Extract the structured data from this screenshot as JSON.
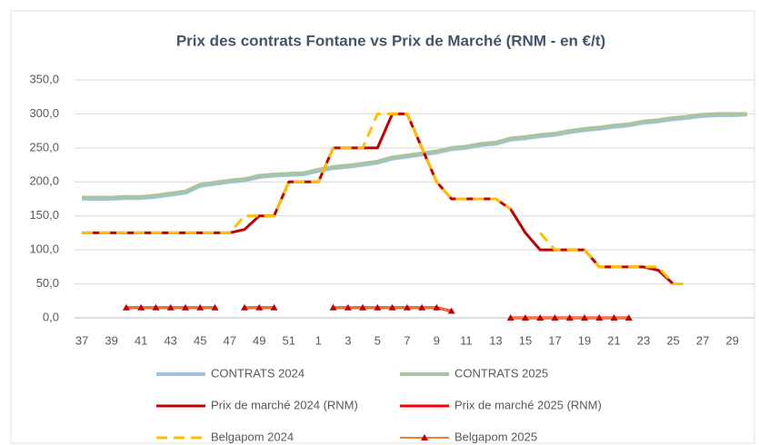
{
  "chart_data": {
    "type": "line",
    "title": "Prix des contrats Fontane vs Prix de Marché (RNM - en €/t)",
    "categories": [
      37,
      null,
      39,
      null,
      41,
      null,
      43,
      null,
      45,
      null,
      47,
      null,
      49,
      null,
      51,
      null,
      1,
      null,
      3,
      null,
      5,
      null,
      7,
      null,
      9,
      null,
      11,
      null,
      13,
      null,
      15,
      null,
      17,
      null,
      19,
      null,
      21,
      null,
      23,
      null,
      25,
      null,
      27,
      null,
      29,
      null
    ],
    "ylim": [
      0,
      350
    ],
    "yticks": [
      {
        "value": 0,
        "label": "0,0"
      },
      {
        "value": 50,
        "label": "50,0"
      },
      {
        "value": 100,
        "label": "100,0"
      },
      {
        "value": 150,
        "label": "150,0"
      },
      {
        "value": 200,
        "label": "200,0"
      },
      {
        "value": 250,
        "label": "250,0"
      },
      {
        "value": 300,
        "label": "300,0"
      },
      {
        "value": 350,
        "label": "350,0"
      }
    ],
    "grid": true,
    "legend": "bottom",
    "series": [
      {
        "name": "CONTRATS 2024",
        "color": "#9dc3e6",
        "width": 4,
        "dash": false,
        "values": [
          175,
          175,
          175,
          176,
          176,
          178,
          181,
          184,
          194,
          197,
          200,
          202,
          207,
          209,
          210,
          211,
          216,
          220,
          222,
          225,
          228,
          234,
          237,
          240,
          243,
          248,
          250,
          254,
          256,
          262,
          264,
          267,
          269,
          273,
          276,
          278,
          281,
          283,
          287,
          289,
          292,
          294,
          297,
          298,
          298,
          299
        ]
      },
      {
        "name": "CONTRATS 2025",
        "color": "#a9c4a0",
        "width": 4,
        "dash": false,
        "values": [
          177,
          177,
          177,
          178,
          178,
          180,
          183,
          186,
          196,
          199,
          202,
          204,
          209,
          211,
          212,
          213,
          218,
          222,
          224,
          227,
          230,
          236,
          239,
          242,
          245,
          250,
          252,
          256,
          258,
          264,
          266,
          269,
          271,
          275,
          278,
          280,
          283,
          285,
          289,
          291,
          294,
          296,
          299,
          300,
          300,
          300
        ]
      },
      {
        "name": "Prix de marché 2024 (RNM)",
        "color": "#c00000",
        "width": 3,
        "dash": false,
        "values": [
          125,
          125,
          125,
          125,
          125,
          125,
          125,
          125,
          125,
          125,
          125,
          130,
          150,
          150,
          200,
          200,
          200,
          250,
          250,
          250,
          250,
          300,
          300,
          250,
          200,
          175,
          175,
          175,
          175,
          160,
          125,
          100,
          100,
          100,
          100,
          75,
          75,
          75,
          75,
          70,
          50,
          null,
          null,
          null,
          null,
          null
        ]
      },
      {
        "name": "Prix de marché 2025 (RNM)",
        "color": "#ff0000",
        "width": 3,
        "dash": false,
        "values": [
          null,
          null,
          null,
          15,
          15,
          15,
          15,
          15,
          15,
          15,
          null,
          15,
          15,
          15,
          null,
          null,
          null,
          15,
          15,
          15,
          15,
          15,
          15,
          15,
          15,
          10,
          null,
          null,
          null,
          0,
          0,
          0,
          0,
          0,
          0,
          0,
          0,
          0,
          null,
          null,
          null,
          null,
          null,
          null,
          null,
          null
        ]
      },
      {
        "name": "Belgapom 2024",
        "color": "#ffc000",
        "width": 3,
        "dash": true,
        "values": [
          125,
          125,
          125,
          125,
          125,
          125,
          125,
          125,
          125,
          125,
          125,
          150,
          150,
          150,
          200,
          200,
          200,
          250,
          250,
          250,
          300,
          300,
          300,
          250,
          200,
          175,
          175,
          175,
          175,
          160,
          null,
          125,
          100,
          100,
          100,
          75,
          75,
          75,
          75,
          75,
          50,
          50,
          null,
          null,
          null,
          null
        ]
      },
      {
        "name": "Belgapom 2025",
        "color": "#ed7d31",
        "width": 2,
        "dash": false,
        "marker": "triangle",
        "marker_color": "#c00000",
        "values": [
          null,
          null,
          null,
          15,
          15,
          15,
          15,
          15,
          15,
          15,
          null,
          15,
          15,
          15,
          null,
          null,
          null,
          15,
          15,
          15,
          15,
          15,
          15,
          15,
          15,
          10,
          null,
          null,
          null,
          0,
          0,
          0,
          0,
          0,
          0,
          0,
          0,
          0,
          null,
          null,
          null,
          null,
          null,
          null,
          null,
          null
        ]
      }
    ]
  }
}
